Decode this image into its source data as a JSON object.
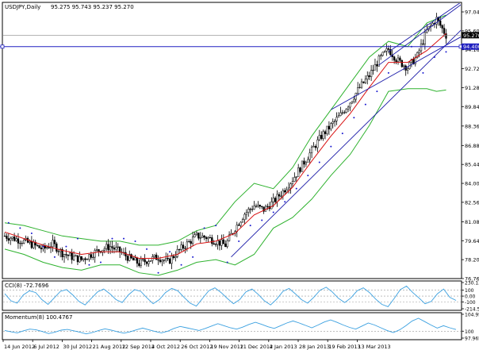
{
  "window": {
    "symbol": "USDJPY,Daily",
    "ohlc": "95.275 95.743 95.237 95.270"
  },
  "chart_data": [
    {
      "type": "candlestick",
      "title": "USDJPY,Daily  95.275 95.743 95.237 95.270",
      "y_ticks": [
        "97.040",
        "95.600",
        "94.160",
        "92.720",
        "91.280",
        "89.840",
        "88.360",
        "86.880",
        "85.440",
        "84.000",
        "82.560",
        "81.080",
        "79.640",
        "78.200",
        "76.760"
      ],
      "ylim": [
        76.76,
        97.6
      ],
      "current_price": "95.270",
      "horizontal_level": "94.400",
      "x_ticks": [
        "14 Jun 2012",
        "6 Jul 2012",
        "30 Jul 2012",
        "21 Aug 2012",
        "12 Sep 2012",
        "4 Oct 2012",
        "26 Oct 2012",
        "19 Nov 2012",
        "11 Dec 2012",
        "4 Jan 2013",
        "28 Jan 2013",
        "19 Feb 2013",
        "13 Mar 2013"
      ],
      "close_path": [
        [
          0,
          80.0
        ],
        [
          5,
          79.8
        ],
        [
          10,
          79.6
        ],
        [
          15,
          79.3
        ],
        [
          20,
          79.0
        ],
        [
          25,
          79.4
        ],
        [
          30,
          78.7
        ],
        [
          35,
          78.4
        ],
        [
          40,
          78.2
        ],
        [
          45,
          78.6
        ],
        [
          50,
          79.0
        ],
        [
          55,
          79.2
        ],
        [
          60,
          78.8
        ],
        [
          65,
          78.3
        ],
        [
          70,
          77.9
        ],
        [
          75,
          78.2
        ],
        [
          80,
          78.4
        ],
        [
          85,
          78.0
        ],
        [
          90,
          78.8
        ],
        [
          95,
          79.4
        ],
        [
          100,
          80.0
        ],
        [
          105,
          79.9
        ],
        [
          110,
          79.6
        ],
        [
          115,
          79.3
        ],
        [
          120,
          80.6
        ],
        [
          125,
          81.7
        ],
        [
          130,
          82.3
        ],
        [
          135,
          82.0
        ],
        [
          140,
          82.6
        ],
        [
          145,
          83.4
        ],
        [
          150,
          84.3
        ],
        [
          155,
          85.4
        ],
        [
          160,
          86.5
        ],
        [
          165,
          87.6
        ],
        [
          170,
          88.4
        ],
        [
          175,
          89.2
        ],
        [
          180,
          90.2
        ],
        [
          185,
          91.3
        ],
        [
          190,
          92.2
        ],
        [
          195,
          93.4
        ],
        [
          200,
          94.2
        ],
        [
          205,
          93.3
        ],
        [
          210,
          92.8
        ],
        [
          215,
          93.7
        ],
        [
          220,
          95.6
        ],
        [
          225,
          96.5
        ],
        [
          230,
          95.27
        ]
      ],
      "ma_path": [
        [
          0,
          80.3
        ],
        [
          10,
          79.8
        ],
        [
          20,
          79.3
        ],
        [
          30,
          78.9
        ],
        [
          40,
          78.6
        ],
        [
          50,
          78.8
        ],
        [
          60,
          78.8
        ],
        [
          70,
          78.3
        ],
        [
          80,
          78.3
        ],
        [
          90,
          78.6
        ],
        [
          100,
          79.4
        ],
        [
          110,
          79.6
        ],
        [
          120,
          80.2
        ],
        [
          130,
          81.6
        ],
        [
          140,
          82.3
        ],
        [
          150,
          83.7
        ],
        [
          160,
          85.7
        ],
        [
          170,
          87.6
        ],
        [
          180,
          89.3
        ],
        [
          190,
          91.3
        ],
        [
          200,
          93.2
        ],
        [
          210,
          93.2
        ],
        [
          220,
          94.1
        ],
        [
          230,
          95.4
        ]
      ],
      "upper_band_path": [
        [
          0,
          81.0
        ],
        [
          10,
          80.8
        ],
        [
          20,
          80.4
        ],
        [
          30,
          80.0
        ],
        [
          40,
          79.8
        ],
        [
          50,
          79.6
        ],
        [
          60,
          79.6
        ],
        [
          70,
          79.3
        ],
        [
          80,
          79.3
        ],
        [
          90,
          79.6
        ],
        [
          100,
          80.4
        ],
        [
          110,
          80.8
        ],
        [
          120,
          82.6
        ],
        [
          130,
          84.0
        ],
        [
          140,
          83.6
        ],
        [
          150,
          85.2
        ],
        [
          160,
          87.6
        ],
        [
          170,
          89.6
        ],
        [
          180,
          91.6
        ],
        [
          190,
          93.6
        ],
        [
          200,
          94.8
        ],
        [
          210,
          94.4
        ],
        [
          220,
          96.2
        ],
        [
          230,
          96.8
        ]
      ],
      "lower_band_path": [
        [
          0,
          79.0
        ],
        [
          10,
          78.6
        ],
        [
          20,
          78.0
        ],
        [
          30,
          77.6
        ],
        [
          40,
          77.4
        ],
        [
          50,
          77.8
        ],
        [
          60,
          77.8
        ],
        [
          70,
          77.2
        ],
        [
          80,
          77.0
        ],
        [
          90,
          77.4
        ],
        [
          100,
          78.0
        ],
        [
          110,
          78.2
        ],
        [
          120,
          77.8
        ],
        [
          130,
          78.6
        ],
        [
          140,
          80.6
        ],
        [
          150,
          81.4
        ],
        [
          160,
          82.8
        ],
        [
          170,
          84.6
        ],
        [
          180,
          86.2
        ],
        [
          190,
          88.4
        ],
        [
          200,
          91.0
        ],
        [
          210,
          91.2
        ],
        [
          220,
          91.2
        ],
        [
          225,
          91.0
        ],
        [
          230,
          91.1
        ]
      ],
      "sar_points": [
        [
          2,
          81.0
        ],
        [
          8,
          80.6
        ],
        [
          14,
          80.2
        ],
        [
          20,
          79.2
        ],
        [
          26,
          78.4
        ],
        [
          32,
          79.2
        ],
        [
          38,
          79.8
        ],
        [
          44,
          77.8
        ],
        [
          50,
          78.0
        ],
        [
          56,
          79.8
        ],
        [
          62,
          79.8
        ],
        [
          68,
          79.6
        ],
        [
          74,
          79.0
        ],
        [
          80,
          77.2
        ],
        [
          86,
          78.8
        ],
        [
          92,
          77.8
        ],
        [
          98,
          78.4
        ],
        [
          104,
          80.6
        ],
        [
          110,
          80.8
        ],
        [
          116,
          78.0
        ],
        [
          122,
          79.6
        ],
        [
          128,
          80.8
        ],
        [
          134,
          81.2
        ],
        [
          140,
          81.8
        ],
        [
          146,
          82.6
        ],
        [
          152,
          83.6
        ],
        [
          158,
          84.6
        ],
        [
          164,
          85.6
        ],
        [
          170,
          86.8
        ],
        [
          176,
          87.8
        ],
        [
          182,
          89.0
        ],
        [
          188,
          90.0
        ],
        [
          194,
          91.0
        ],
        [
          200,
          92.4
        ],
        [
          206,
          94.6
        ],
        [
          212,
          94.4
        ],
        [
          218,
          92.4
        ],
        [
          224,
          93.6
        ],
        [
          230,
          94.0
        ]
      ],
      "trendlines": [
        {
          "from": [
            118,
            78.4
          ],
          "to": [
            236,
            95.4
          ],
          "color": "#1a1aa8"
        },
        {
          "from": [
            200,
            94.0
          ],
          "to": [
            236,
            97.6
          ],
          "color": "#1a1aa8"
        },
        {
          "from": [
            195,
            93.0
          ],
          "to": [
            236,
            97.4
          ],
          "color": "#1a1aa8"
        },
        {
          "from": [
            170,
            89.6
          ],
          "to": [
            236,
            95.0
          ],
          "color": "#1a1aa8"
        }
      ]
    },
    {
      "type": "line",
      "title": "CCI(8) -72.7696",
      "y_ticks": [
        "230.1356",
        "100",
        "0.00",
        "-100",
        "-214.561"
      ],
      "ylim": [
        -214.561,
        230.1356
      ],
      "series": [
        {
          "name": "CCI(8)",
          "values": [
            40,
            -80,
            -120,
            20,
            90,
            60,
            -60,
            -140,
            -30,
            80,
            110,
            20,
            -90,
            -150,
            -40,
            70,
            120,
            40,
            -60,
            -110,
            20,
            110,
            80,
            -30,
            -130,
            -60,
            60,
            130,
            90,
            -20,
            -120,
            -170,
            -40,
            90,
            140,
            60,
            -40,
            -130,
            -60,
            70,
            120,
            30,
            -80,
            -150,
            -50,
            80,
            130,
            40,
            -60,
            -120,
            -20,
            100,
            150,
            70,
            -40,
            -110,
            -30,
            90,
            140,
            60,
            -50,
            -140,
            -180,
            -40,
            110,
            170,
            60,
            -30,
            -130,
            -90,
            40,
            120,
            -20,
            -72.77
          ]
        }
      ]
    },
    {
      "type": "line",
      "title": "Momentum(8) 100.4767",
      "y_ticks": [
        "104.9546",
        "100",
        "97.9657"
      ],
      "ylim": [
        97.9657,
        104.9546
      ],
      "series": [
        {
          "name": "Momentum(8)",
          "values": [
            100.2,
            99.8,
            99.5,
            100.1,
            100.6,
            100.4,
            99.9,
            99.3,
            99.7,
            100.3,
            100.5,
            100.1,
            99.7,
            99.2,
            99.6,
            100.2,
            100.7,
            100.3,
            99.8,
            99.4,
            99.8,
            100.4,
            100.9,
            100.4,
            99.9,
            99.5,
            100.0,
            100.8,
            101.4,
            101.0,
            100.6,
            100.2,
            100.8,
            101.5,
            102.2,
            101.6,
            101.0,
            100.6,
            101.2,
            102.0,
            102.6,
            102.0,
            101.3,
            100.8,
            101.6,
            102.4,
            103.0,
            102.4,
            101.7,
            101.0,
            101.8,
            102.7,
            103.3,
            102.6,
            101.8,
            101.1,
            100.6,
            101.5,
            102.4,
            101.8,
            101.0,
            100.2,
            99.6,
            100.4,
            101.6,
            103.0,
            103.8,
            102.8,
            101.8,
            100.9,
            101.6,
            101.0,
            100.48
          ]
        }
      ]
    }
  ],
  "colors": {
    "bg": "#ffffff",
    "grid": "#c8c8c8",
    "frame": "#000000",
    "bull": "#000000",
    "bear": "#000000",
    "ma": "#d81010",
    "bands": "#2eb22e",
    "sar": "#1a1ad0",
    "trendline": "#1a1aa8",
    "level_line": "#2020c0",
    "level_tag_bg": "#2020c0",
    "level_tag_fg": "#ffffff",
    "price_tag_bg": "#000000",
    "price_tag_fg": "#ffffff",
    "indicator_line": "#3aa0e0",
    "indicator_guide": "#999999"
  }
}
